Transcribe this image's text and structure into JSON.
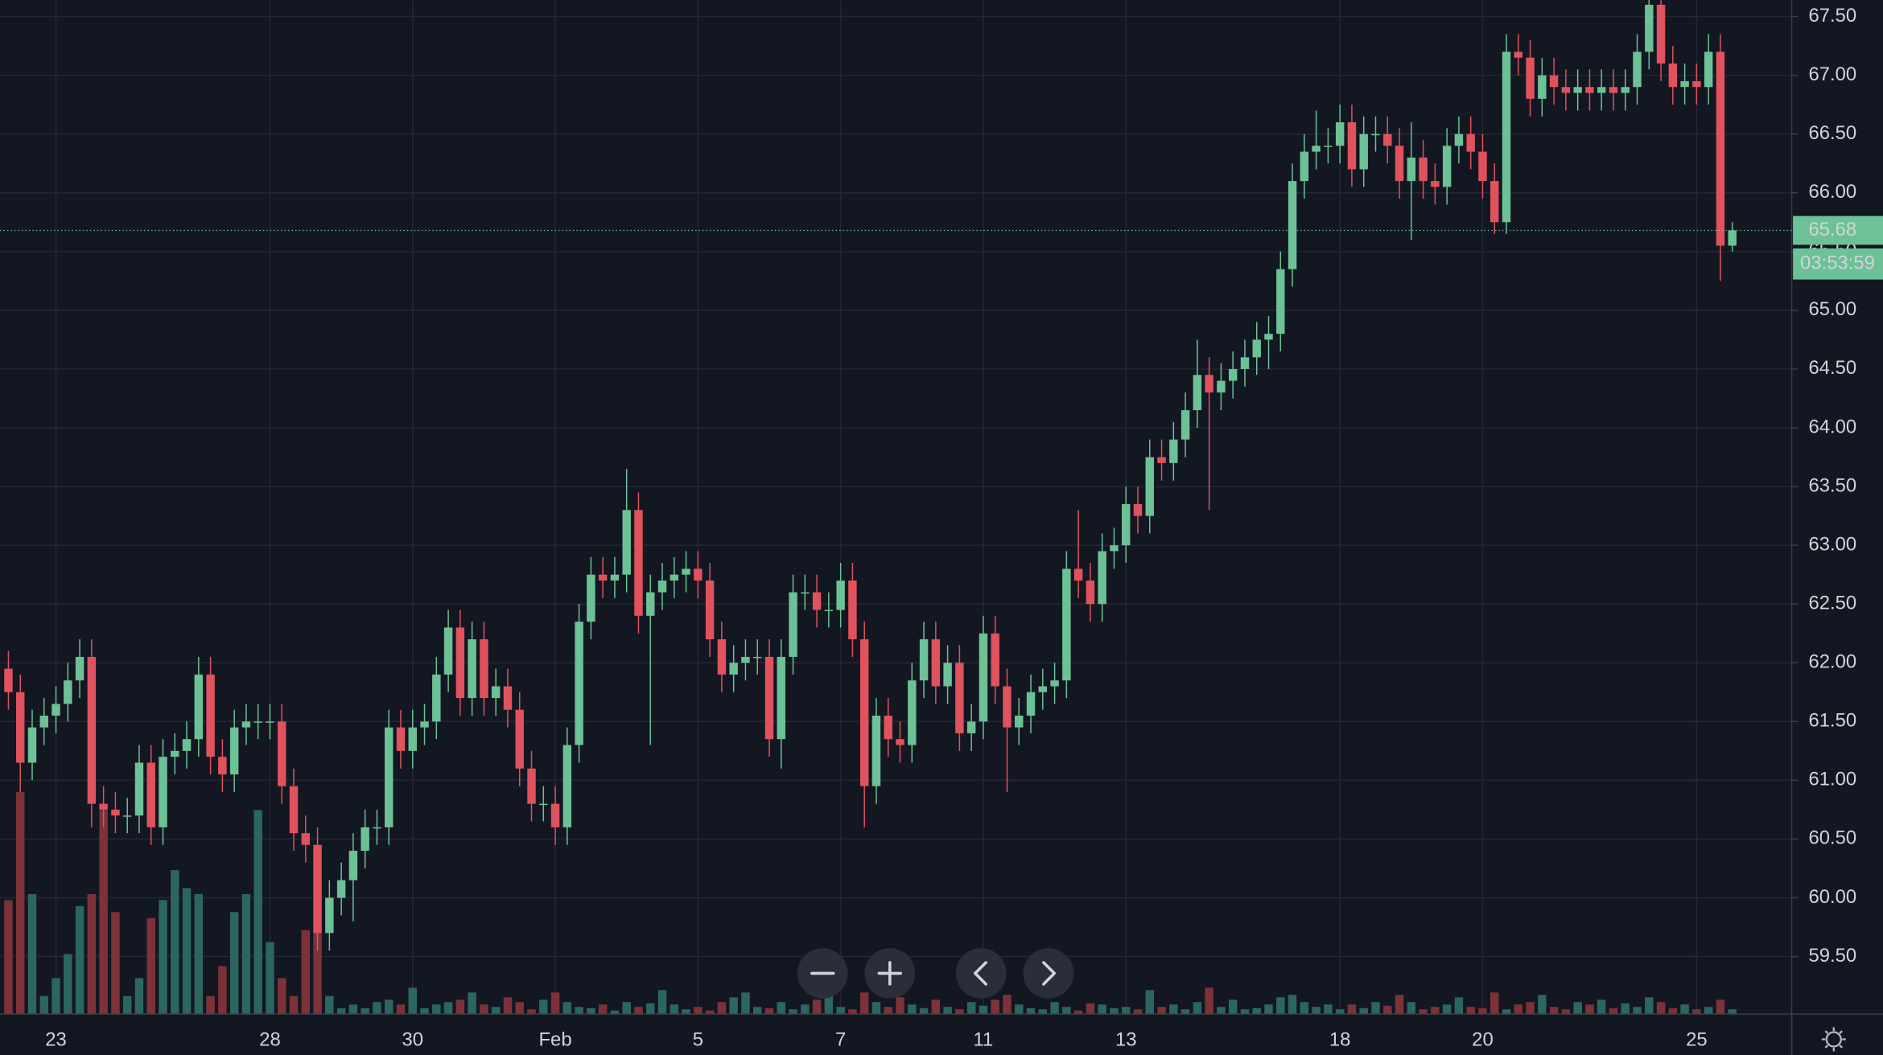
{
  "chart_data": {
    "type": "candlestick",
    "categories": [
      null,
      null,
      null,
      null,
      "23",
      null,
      null,
      null,
      null,
      null,
      null,
      null,
      null,
      null,
      null,
      null,
      null,
      null,
      null,
      null,
      null,
      null,
      "28",
      null,
      null,
      null,
      null,
      null,
      null,
      null,
      null,
      null,
      null,
      null,
      "30",
      null,
      null,
      null,
      null,
      null,
      null,
      null,
      null,
      null,
      null,
      null,
      "Feb",
      null,
      null,
      null,
      null,
      null,
      null,
      null,
      null,
      null,
      null,
      null,
      "5",
      null,
      null,
      null,
      null,
      null,
      null,
      null,
      null,
      null,
      null,
      null,
      "7",
      null,
      null,
      null,
      null,
      null,
      null,
      null,
      null,
      null,
      null,
      null,
      "11",
      null,
      null,
      null,
      null,
      null,
      null,
      null,
      null,
      null,
      null,
      null,
      "13",
      null,
      null,
      null,
      null,
      null,
      null,
      null,
      null,
      null,
      null,
      null,
      null,
      null,
      null,
      null,
      null,
      null,
      "18",
      null,
      null,
      null,
      null,
      null,
      null,
      null,
      null,
      null,
      null,
      null,
      "20",
      null,
      null,
      null,
      null,
      null,
      null,
      null,
      null,
      null,
      null,
      null,
      null,
      null,
      null,
      null,
      null,
      null,
      "25",
      null,
      null,
      null
    ],
    "open": [
      61.95,
      61.75,
      61.15,
      61.45,
      61.55,
      61.65,
      61.85,
      62.05,
      60.8,
      60.75,
      60.7,
      60.7,
      61.15,
      60.6,
      61.2,
      61.25,
      61.35,
      61.9,
      61.2,
      61.05,
      61.45,
      61.5,
      61.5,
      61.5,
      60.95,
      60.55,
      60.45,
      59.7,
      60.0,
      60.15,
      60.4,
      60.6,
      60.6,
      61.45,
      61.25,
      61.45,
      61.5,
      61.9,
      62.3,
      61.7,
      62.2,
      61.7,
      61.8,
      61.6,
      61.1,
      60.8,
      60.8,
      60.6,
      61.3,
      62.35,
      62.75,
      62.7,
      62.75,
      63.3,
      62.4,
      62.6,
      62.7,
      62.75,
      62.8,
      62.7,
      62.2,
      61.9,
      62.0,
      62.05,
      62.05,
      61.35,
      62.05,
      62.6,
      62.6,
      62.45,
      62.45,
      62.7,
      62.2,
      60.95,
      61.55,
      61.35,
      61.3,
      61.85,
      62.2,
      61.8,
      62.0,
      61.4,
      61.5,
      62.25,
      61.8,
      61.45,
      61.55,
      61.75,
      61.8,
      61.85,
      62.8,
      62.7,
      62.5,
      62.95,
      63.0,
      63.35,
      63.25,
      63.75,
      63.7,
      63.9,
      64.15,
      64.45,
      64.3,
      64.4,
      64.5,
      64.6,
      64.75,
      64.8,
      65.35,
      66.1,
      66.35,
      66.4,
      66.4,
      66.6,
      66.2,
      66.5,
      66.5,
      66.4,
      66.1,
      66.3,
      66.1,
      66.05,
      66.4,
      66.5,
      66.35,
      66.1,
      65.75,
      67.2,
      67.15,
      66.8,
      67.0,
      66.9,
      66.85,
      66.9,
      66.85,
      66.9,
      66.85,
      66.9,
      67.2,
      67.6,
      67.1,
      66.9,
      66.95,
      66.9,
      67.2,
      65.55
    ],
    "high": [
      62.1,
      61.9,
      61.6,
      61.7,
      61.8,
      62.0,
      62.2,
      62.2,
      60.95,
      60.9,
      60.85,
      61.3,
      61.3,
      61.35,
      61.4,
      61.5,
      62.05,
      62.05,
      61.35,
      61.6,
      61.65,
      61.65,
      61.65,
      61.65,
      61.1,
      60.7,
      60.6,
      60.15,
      60.3,
      60.55,
      60.75,
      60.75,
      61.6,
      61.6,
      61.6,
      61.65,
      62.05,
      62.45,
      62.45,
      62.35,
      62.35,
      61.95,
      61.95,
      61.75,
      61.25,
      60.95,
      60.95,
      61.45,
      62.5,
      62.9,
      62.9,
      62.9,
      63.65,
      63.45,
      62.75,
      62.85,
      62.9,
      62.95,
      62.95,
      62.85,
      62.35,
      62.15,
      62.2,
      62.2,
      62.2,
      62.2,
      62.75,
      62.75,
      62.75,
      62.6,
      62.85,
      62.85,
      62.35,
      61.7,
      61.7,
      61.5,
      62.0,
      62.35,
      62.35,
      62.15,
      62.15,
      61.65,
      62.4,
      62.4,
      61.95,
      61.7,
      61.9,
      61.95,
      62.0,
      62.95,
      63.3,
      62.85,
      63.1,
      63.15,
      63.5,
      63.5,
      63.9,
      63.9,
      64.05,
      64.3,
      64.75,
      64.6,
      64.55,
      64.65,
      64.75,
      64.9,
      64.95,
      65.5,
      66.25,
      66.5,
      66.7,
      66.55,
      66.75,
      66.75,
      66.65,
      66.65,
      66.65,
      66.55,
      66.6,
      66.45,
      66.25,
      66.55,
      66.65,
      66.65,
      66.5,
      66.25,
      67.35,
      67.35,
      67.3,
      67.15,
      67.15,
      67.05,
      67.05,
      67.05,
      67.05,
      67.05,
      67.05,
      67.35,
      67.65,
      67.65,
      67.25,
      67.1,
      67.1,
      67.35,
      67.35,
      65.75
    ],
    "low": [
      61.6,
      60.9,
      61.0,
      61.3,
      61.4,
      61.5,
      61.7,
      60.6,
      60.6,
      60.55,
      60.55,
      60.55,
      60.45,
      60.45,
      61.05,
      61.1,
      61.2,
      61.05,
      60.9,
      60.9,
      61.3,
      61.35,
      61.35,
      60.8,
      60.4,
      60.3,
      59.55,
      59.55,
      59.85,
      59.8,
      60.25,
      60.45,
      60.45,
      61.1,
      61.1,
      61.3,
      61.35,
      61.75,
      61.55,
      61.55,
      61.55,
      61.55,
      61.45,
      60.95,
      60.65,
      60.65,
      60.45,
      60.45,
      61.15,
      62.2,
      62.55,
      62.55,
      62.6,
      62.25,
      61.3,
      62.45,
      62.55,
      62.6,
      62.55,
      62.05,
      61.75,
      61.75,
      61.85,
      61.9,
      61.2,
      61.1,
      61.9,
      62.45,
      62.3,
      62.3,
      62.3,
      62.05,
      60.6,
      60.8,
      61.2,
      61.15,
      61.15,
      61.7,
      61.65,
      61.65,
      61.25,
      61.25,
      61.35,
      61.65,
      60.9,
      61.3,
      61.4,
      61.6,
      61.65,
      61.7,
      62.55,
      62.35,
      62.35,
      62.8,
      62.85,
      63.1,
      63.1,
      63.55,
      63.55,
      63.75,
      64.0,
      63.3,
      64.15,
      64.25,
      64.35,
      64.45,
      64.5,
      64.65,
      65.2,
      65.95,
      66.2,
      66.25,
      66.25,
      66.05,
      66.05,
      66.35,
      66.25,
      65.95,
      65.6,
      65.95,
      65.9,
      65.9,
      66.25,
      66.2,
      65.95,
      65.65,
      65.65,
      67.0,
      66.65,
      66.65,
      66.75,
      66.7,
      66.7,
      66.7,
      66.7,
      66.7,
      66.7,
      66.75,
      67.05,
      66.95,
      66.75,
      66.75,
      66.75,
      66.75,
      65.25,
      65.5
    ],
    "close": [
      61.75,
      61.15,
      61.45,
      61.55,
      61.65,
      61.85,
      62.05,
      60.8,
      60.75,
      60.7,
      60.7,
      61.15,
      60.6,
      61.2,
      61.25,
      61.35,
      61.9,
      61.2,
      61.05,
      61.45,
      61.5,
      61.5,
      61.5,
      60.95,
      60.55,
      60.45,
      59.7,
      60.0,
      60.15,
      60.4,
      60.6,
      60.6,
      61.45,
      61.25,
      61.45,
      61.5,
      61.9,
      62.3,
      61.7,
      62.2,
      61.7,
      61.8,
      61.6,
      61.1,
      60.8,
      60.8,
      60.6,
      61.3,
      62.35,
      62.75,
      62.7,
      62.75,
      63.3,
      62.4,
      62.6,
      62.7,
      62.75,
      62.8,
      62.7,
      62.2,
      61.9,
      62.0,
      62.05,
      62.05,
      61.35,
      62.05,
      62.6,
      62.6,
      62.45,
      62.45,
      62.7,
      62.2,
      60.95,
      61.55,
      61.35,
      61.3,
      61.85,
      62.2,
      61.8,
      62.0,
      61.4,
      61.5,
      62.25,
      61.8,
      61.45,
      61.55,
      61.75,
      61.8,
      61.85,
      62.8,
      62.7,
      62.5,
      62.95,
      63.0,
      63.35,
      63.25,
      63.75,
      63.7,
      63.9,
      64.15,
      64.45,
      64.3,
      64.4,
      64.5,
      64.6,
      64.75,
      64.8,
      65.35,
      66.1,
      66.35,
      66.4,
      66.4,
      66.6,
      66.2,
      66.5,
      66.5,
      66.4,
      66.1,
      66.3,
      66.1,
      66.05,
      66.4,
      66.5,
      66.35,
      66.1,
      65.75,
      67.2,
      67.15,
      66.8,
      67.0,
      66.9,
      66.85,
      66.9,
      66.85,
      66.9,
      66.85,
      66.9,
      67.2,
      67.6,
      67.1,
      66.9,
      66.95,
      66.9,
      67.2,
      65.55,
      65.68
    ],
    "volume": [
      95,
      185,
      100,
      15,
      30,
      50,
      90,
      100,
      170,
      85,
      15,
      30,
      80,
      95,
      120,
      105,
      100,
      15,
      40,
      85,
      100,
      170,
      60,
      30,
      15,
      70,
      100,
      15,
      5,
      8,
      5,
      10,
      12,
      8,
      22,
      5,
      8,
      10,
      12,
      18,
      8,
      6,
      14,
      10,
      4,
      12,
      18,
      10,
      6,
      5,
      8,
      3,
      10,
      6,
      9,
      20,
      8,
      4,
      6,
      3,
      10,
      14,
      18,
      6,
      5,
      10,
      4,
      8,
      12,
      20,
      6,
      4,
      18,
      10,
      6,
      14,
      8,
      5,
      12,
      6,
      4,
      10,
      7,
      12,
      16,
      8,
      5,
      4,
      10,
      6,
      3,
      9,
      8,
      5,
      6,
      4,
      20,
      6,
      8,
      4,
      10,
      22,
      6,
      12,
      4,
      5,
      8,
      14,
      16,
      10,
      6,
      8,
      4,
      8,
      5,
      10,
      7,
      16,
      10,
      4,
      6,
      8,
      14,
      6,
      5,
      18,
      4,
      8,
      10,
      16,
      6,
      4,
      10,
      8,
      12,
      5,
      9,
      6,
      14,
      10,
      5,
      8,
      4,
      6,
      12,
      4
    ],
    "ylim": [
      59.01,
      67.64
    ],
    "yticks": [
      {
        "value": 67.5,
        "label": "67.50"
      },
      {
        "value": 67,
        "label": "67.00"
      },
      {
        "value": 66.5,
        "label": "66.50"
      },
      {
        "value": 66,
        "label": "66.00"
      },
      {
        "value": 65.5,
        "label": "65.50"
      },
      {
        "value": 65,
        "label": "65.00"
      },
      {
        "value": 64.5,
        "label": "64.50"
      },
      {
        "value": 64,
        "label": "64.00"
      },
      {
        "value": 63.5,
        "label": "63.50"
      },
      {
        "value": 63,
        "label": "63.00"
      },
      {
        "value": 62.5,
        "label": "62.50"
      },
      {
        "value": 62,
        "label": "62.00"
      },
      {
        "value": 61.5,
        "label": "61.50"
      },
      {
        "value": 61,
        "label": "61.00"
      },
      {
        "value": 60.5,
        "label": "60.50"
      },
      {
        "value": 60,
        "label": "60.00"
      },
      {
        "value": 59.5,
        "label": "59.50"
      }
    ],
    "countdown": "03:53:59",
    "grid": true,
    "up_color": "#6cc196",
    "down_color": "#e0525e",
    "up_volume_color": "#2c6660",
    "down_volume_color": "#7c3238"
  }
}
